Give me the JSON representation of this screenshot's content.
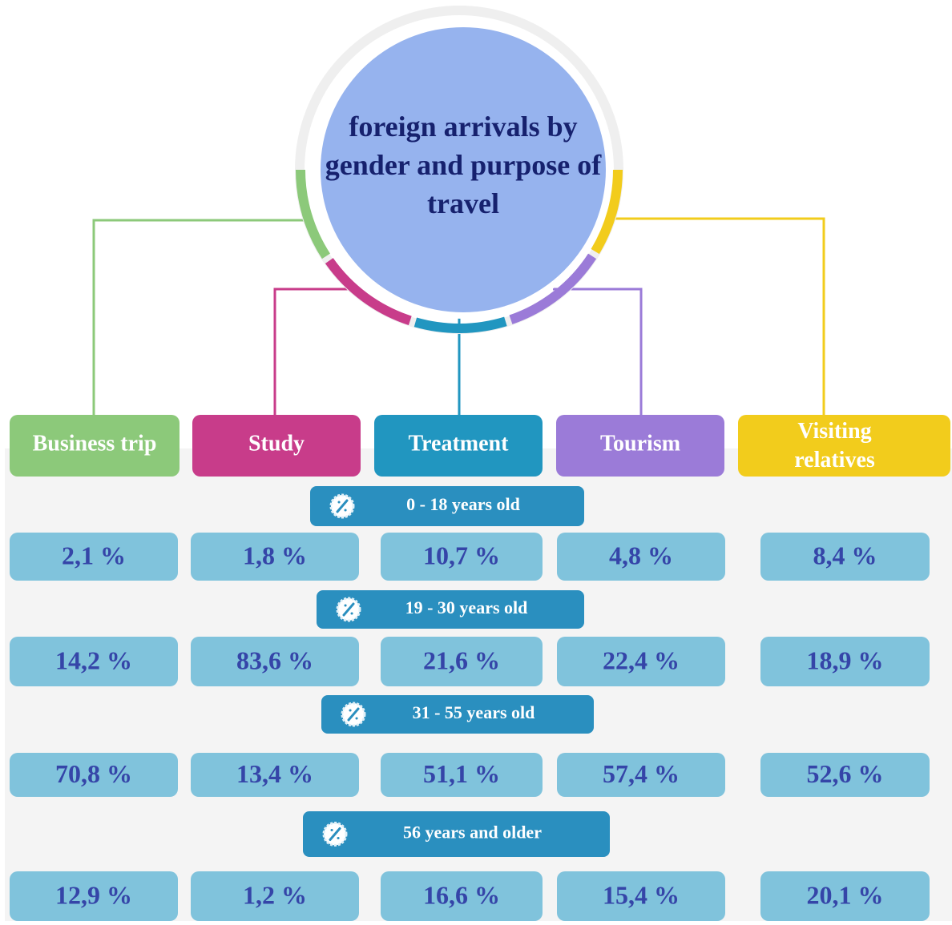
{
  "title": "foreign arrivals by gender and purpose of travel",
  "purposes": [
    "Business trip",
    "Study",
    "Treatment",
    "Tourism",
    "Visiting relatives"
  ],
  "age_groups": [
    {
      "label": "0 - 18 years old",
      "values": [
        "2,1 %",
        "1,8 %",
        "10,7 %",
        "4,8 %",
        "8,4 %"
      ]
    },
    {
      "label": "19 - 30 years old",
      "values": [
        "14,2 %",
        "83,6 %",
        "21,6 %",
        "22,4 %",
        "18,9 %"
      ]
    },
    {
      "label": "31 - 55 years old",
      "values": [
        "70,8 %",
        "13,4 %",
        "51,1 %",
        "57,4 %",
        "52,6 %"
      ]
    },
    {
      "label": "56 years and older",
      "values": [
        "12,9 %",
        "1,2 %",
        "16,6 %",
        "15,4 %",
        "20,1 %"
      ]
    }
  ]
}
